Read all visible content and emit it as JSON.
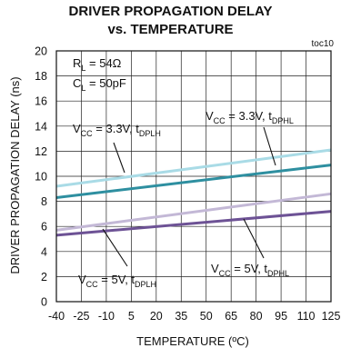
{
  "chart_data": {
    "type": "line",
    "title_line1": "DRIVER PROPAGATION DELAY",
    "title_line2": "vs. TEMPERATURE",
    "tag": "toc10",
    "xlabel": "TEMPERATURE (ºC)",
    "ylabel": "DRIVER PROPAGATION DELAY (ns)",
    "xlim": [
      -40,
      125
    ],
    "ylim": [
      0,
      20
    ],
    "x_ticks": [
      "-40",
      "-25",
      "-10",
      "5",
      "20",
      "35",
      "50",
      "65",
      "80",
      "95",
      "110",
      "125"
    ],
    "y_ticks": [
      "0",
      "2",
      "4",
      "6",
      "8",
      "10",
      "12",
      "14",
      "16",
      "18",
      "20"
    ],
    "grid": true,
    "conditions": {
      "rl": "R",
      "rl_sub": "L",
      "rl_val": " = 54Ω",
      "cl": "C",
      "cl_sub": "L",
      "cl_val": " = 50pF"
    },
    "series": [
      {
        "name": "VCC = 3.3V, tDPLH",
        "color": "#a9dbe6",
        "x": [
          -40,
          125
        ],
        "y": [
          9.2,
          12.1
        ]
      },
      {
        "name": "VCC = 3.3V, tDPHL",
        "color": "#2e8fa0",
        "x": [
          -40,
          125
        ],
        "y": [
          8.3,
          10.9
        ]
      },
      {
        "name": "VCC = 5V, tDPLH",
        "color": "#c3b8d6",
        "x": [
          -40,
          125
        ],
        "y": [
          5.7,
          8.6
        ]
      },
      {
        "name": "VCC = 5V, tDPHL",
        "color": "#6d5295",
        "x": [
          -40,
          125
        ],
        "y": [
          5.3,
          7.2
        ]
      }
    ],
    "annotations": [
      {
        "id": "a1",
        "v": "V",
        "vsub": "CC",
        "mid": " = 3.3V, t",
        "tsub": "DPLH"
      },
      {
        "id": "a2",
        "v": "V",
        "vsub": "CC",
        "mid": " = 3.3V, t",
        "tsub": "DPHL"
      },
      {
        "id": "a3",
        "v": "V",
        "vsub": "CC",
        "mid": " = 5V, t",
        "tsub": "DPLH"
      },
      {
        "id": "a4",
        "v": "V",
        "vsub": "CC",
        "mid": " = 5V, t",
        "tsub": "DPHL"
      }
    ]
  }
}
